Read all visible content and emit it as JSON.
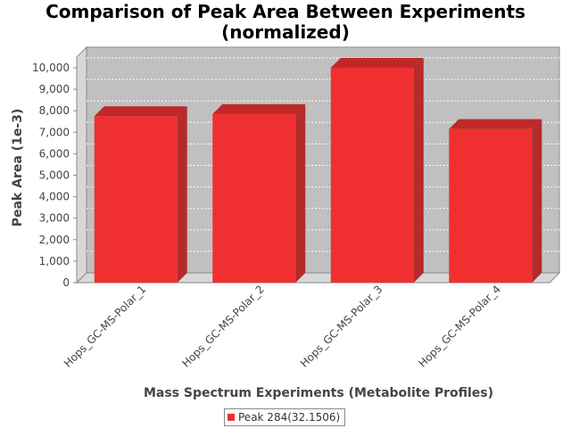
{
  "chart_data": {
    "type": "bar",
    "title_line1": "Comparison of Peak Area Between Experiments",
    "title_line2": "(normalized)",
    "xlabel": "Mass Spectrum Experiments (Metabolite Profiles)",
    "ylabel": "Peak Area (1e-3)",
    "categories": [
      "Hops_GC-MS-Polar_1",
      "Hops_GC-MS-Polar_2",
      "Hops_GC-MS-Polar_3",
      "Hops_GC-MS-Polar_4"
    ],
    "series": [
      {
        "name": "Peak 284(32.1506)",
        "values": [
          7750,
          7850,
          10000,
          7150
        ],
        "color": "#f03030"
      }
    ],
    "ylim": [
      0,
      10500
    ],
    "yticks": [
      0,
      1000,
      2000,
      3000,
      4000,
      5000,
      6000,
      7000,
      8000,
      9000,
      10000
    ],
    "ytick_labels": [
      "0",
      "1,000",
      "2,000",
      "3,000",
      "4,000",
      "5,000",
      "6,000",
      "7,000",
      "8,000",
      "9,000",
      "10,000"
    ],
    "grid": true,
    "legend_position": "bottom",
    "plot_background": "#c0c0c0"
  }
}
